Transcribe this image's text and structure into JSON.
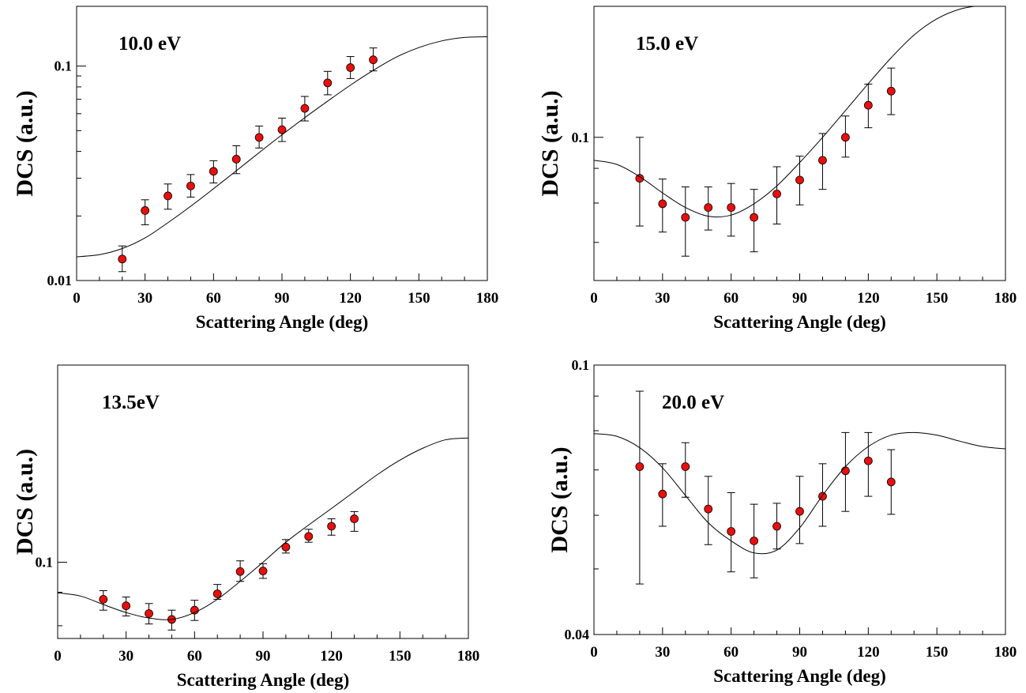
{
  "chart_data": [
    {
      "type": "scatter",
      "annotation": "10.0 eV",
      "xlabel": "Scattering Angle (deg)",
      "ylabel": "DCS (a.u.)",
      "xlim": [
        0,
        180
      ],
      "ylim": [
        0.01,
        0.19
      ],
      "yscale": "log",
      "xticks": [
        0,
        30,
        60,
        90,
        120,
        150,
        180
      ],
      "yticks": [
        {
          "value": 0.01,
          "label": "0.01"
        },
        {
          "value": 0.1,
          "label": "0.1"
        }
      ],
      "series": [
        {
          "kind": "points",
          "x": [
            20,
            30,
            40,
            50,
            60,
            70,
            80,
            90,
            100,
            110,
            120,
            130
          ],
          "y": [
            0.0126,
            0.0212,
            0.0248,
            0.0276,
            0.0323,
            0.0368,
            0.0465,
            0.0505,
            0.0635,
            0.0835,
            0.0984,
            0.107
          ],
          "yerr_low": [
            0.011,
            0.0182,
            0.0215,
            0.0245,
            0.0285,
            0.0315,
            0.0415,
            0.0445,
            0.0555,
            0.0735,
            0.0875,
            0.095
          ],
          "yerr_high": [
            0.0145,
            0.0238,
            0.0282,
            0.0312,
            0.0362,
            0.0425,
            0.0525,
            0.0572,
            0.0722,
            0.0945,
            0.1108,
            0.1215
          ]
        },
        {
          "kind": "curve",
          "x": [
            0,
            10,
            20,
            30,
            40,
            50,
            60,
            70,
            80,
            90,
            100,
            110,
            120,
            130,
            140,
            150,
            160,
            170,
            180
          ],
          "y": [
            0.0129,
            0.0132,
            0.0141,
            0.0158,
            0.0186,
            0.0222,
            0.0268,
            0.0325,
            0.0395,
            0.0478,
            0.0575,
            0.0686,
            0.0815,
            0.0955,
            0.11,
            0.122,
            0.131,
            0.136,
            0.137
          ]
        }
      ]
    },
    {
      "type": "scatter",
      "annotation": "15.0 eV",
      "xlabel": "Scattering Angle (deg)",
      "ylabel": "DCS (a.u.)",
      "xlim": [
        0,
        180
      ],
      "ylim": [
        0.0615,
        0.156
      ],
      "yscale": "log",
      "xticks": [
        0,
        30,
        60,
        90,
        120,
        150,
        180
      ],
      "yticks": [
        {
          "value": 0.1,
          "label": "0.1"
        }
      ],
      "series": [
        {
          "kind": "points",
          "x": [
            20,
            30,
            40,
            50,
            60,
            70,
            80,
            90,
            100,
            110,
            120,
            130
          ],
          "y": [
            0.087,
            0.0798,
            0.0762,
            0.0788,
            0.0788,
            0.0762,
            0.0825,
            0.0865,
            0.0925,
            0.1,
            0.1115,
            0.117
          ],
          "yerr_low": [
            0.074,
            0.0725,
            0.0668,
            0.073,
            0.0715,
            0.0678,
            0.0745,
            0.0795,
            0.0838,
            0.0935,
            0.1033,
            0.108
          ],
          "yerr_high": [
            0.1,
            0.0868,
            0.0845,
            0.0845,
            0.0855,
            0.0838,
            0.0905,
            0.0938,
            0.1013,
            0.1075,
            0.1198,
            0.1265
          ]
        },
        {
          "kind": "curve",
          "x": [
            0,
            10,
            20,
            30,
            40,
            50,
            60,
            70,
            80,
            90,
            100,
            110,
            120,
            130,
            140,
            150,
            160,
            170,
            180
          ],
          "y": [
            0.0925,
            0.0912,
            0.0875,
            0.0828,
            0.0788,
            0.0765,
            0.0768,
            0.0798,
            0.0848,
            0.0918,
            0.1,
            0.1095,
            0.12,
            0.131,
            0.1415,
            0.1495,
            0.1545,
            0.1565,
            0.157
          ]
        }
      ]
    },
    {
      "type": "scatter",
      "annotation": "13.5eV",
      "xlabel": "Scattering Angle (deg)",
      "ylabel": "DCS (a.u.)",
      "xlim": [
        0,
        180
      ],
      "ylim": [
        0.0765,
        0.2
      ],
      "yscale": "log",
      "xticks": [
        0,
        30,
        60,
        90,
        120,
        150,
        180
      ],
      "yticks": [
        {
          "value": 0.1,
          "label": "0.1"
        }
      ],
      "series": [
        {
          "kind": "points",
          "x": [
            20,
            30,
            40,
            50,
            60,
            70,
            80,
            90,
            100,
            110,
            120,
            130
          ],
          "y": [
            0.0878,
            0.0858,
            0.0835,
            0.0818,
            0.0845,
            0.0895,
            0.0968,
            0.097,
            0.1055,
            0.1095,
            0.1135,
            0.1165
          ],
          "yerr_low": [
            0.0845,
            0.0828,
            0.0805,
            0.0788,
            0.0815,
            0.0878,
            0.0935,
            0.0945,
            0.1033,
            0.1073,
            0.11,
            0.1115
          ],
          "yerr_high": [
            0.0905,
            0.0885,
            0.0865,
            0.0845,
            0.0875,
            0.0925,
            0.1005,
            0.0995,
            0.1083,
            0.1123,
            0.1165,
            0.1195
          ]
        },
        {
          "kind": "curve",
          "x": [
            0,
            10,
            20,
            30,
            40,
            50,
            60,
            70,
            80,
            90,
            100,
            110,
            120,
            130,
            140,
            150,
            160,
            170,
            180
          ],
          "y": [
            0.0898,
            0.0888,
            0.0862,
            0.0838,
            0.0822,
            0.0818,
            0.0838,
            0.0878,
            0.0935,
            0.1,
            0.1073,
            0.114,
            0.1208,
            0.1282,
            0.136,
            0.1432,
            0.1493,
            0.1538,
            0.1548
          ]
        }
      ]
    },
    {
      "type": "scatter",
      "annotation": "20.0 eV",
      "xlabel": "Scattering Angle (deg)",
      "ylabel": "DCS (a.u.)",
      "xlim": [
        0,
        180
      ],
      "ylim": [
        0.04,
        0.1
      ],
      "yscale": "log",
      "xticks": [
        0,
        30,
        60,
        90,
        120,
        150,
        180
      ],
      "yticks": [
        {
          "value": 0.04,
          "label": "0.04"
        },
        {
          "value": 0.1,
          "label": "0.1"
        }
      ],
      "series": [
        {
          "kind": "points",
          "x": [
            20,
            30,
            40,
            50,
            60,
            70,
            80,
            90,
            100,
            110,
            120,
            130
          ],
          "y": [
            0.0708,
            0.0645,
            0.0708,
            0.0613,
            0.0568,
            0.055,
            0.0578,
            0.0608,
            0.064,
            0.0698,
            0.0722,
            0.0672
          ],
          "yerr_low": [
            0.0475,
            0.0578,
            0.0638,
            0.0543,
            0.0495,
            0.0485,
            0.0535,
            0.0545,
            0.0578,
            0.0608,
            0.064,
            0.0602
          ],
          "yerr_high": [
            0.0915,
            0.0715,
            0.0768,
            0.0685,
            0.0648,
            0.0623,
            0.0625,
            0.0685,
            0.0715,
            0.0795,
            0.0795,
            0.075
          ]
        },
        {
          "kind": "curve",
          "x": [
            0,
            10,
            20,
            30,
            40,
            50,
            60,
            70,
            80,
            90,
            100,
            110,
            120,
            130,
            140,
            150,
            160,
            170,
            180
          ],
          "y": [
            0.0792,
            0.0785,
            0.0755,
            0.0705,
            0.0642,
            0.0585,
            0.055,
            0.0528,
            0.0533,
            0.0575,
            0.0642,
            0.0708,
            0.0758,
            0.0788,
            0.0795,
            0.0788,
            0.0772,
            0.0758,
            0.0752
          ]
        }
      ]
    }
  ]
}
